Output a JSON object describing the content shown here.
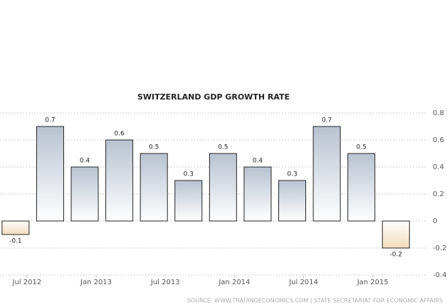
{
  "chart_data": {
    "type": "bar",
    "title": "SWITZERLAND GDP GROWTH RATE",
    "source": "SOURCE: WWW.TRADINGECONOMICS.COM | STATE SECRETARIAT FOR ECONOMIC AFFAIRS",
    "categories": [
      null,
      null,
      null,
      null,
      null,
      null,
      null,
      null,
      null,
      null,
      null,
      null
    ],
    "values": [
      -0.1,
      0.7,
      0.4,
      0.6,
      0.5,
      0.3,
      0.5,
      0.4,
      0.3,
      0.7,
      0.5,
      -0.2
    ],
    "color": "#b8c2d0",
    "negative_color": "#f3dbbd",
    "ylim": [
      -0.4,
      0.8
    ],
    "yticks": [
      -0.4,
      -0.2,
      0,
      0.2,
      0.4,
      0.6,
      0.8
    ],
    "xlim": [
      -0.45,
      11.9
    ],
    "xticks": [
      {
        "value": 0.33,
        "label": "Jul 2012"
      },
      {
        "value": 2.33,
        "label": "Jan 2013"
      },
      {
        "value": 4.33,
        "label": "Jul 2013"
      },
      {
        "value": 6.33,
        "label": "Jan 2014"
      },
      {
        "value": 8.33,
        "label": "Jul 2014"
      },
      {
        "value": 10.33,
        "label": "Jan 2015"
      }
    ],
    "grid": true,
    "y_axis_side": "right"
  }
}
